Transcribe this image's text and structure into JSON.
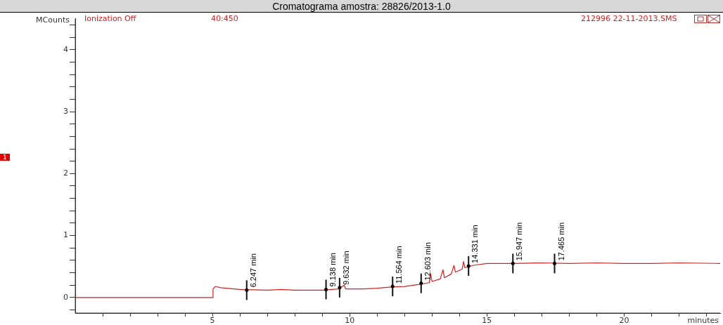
{
  "chart_data": {
    "type": "line",
    "title": "Cromatograma amostra: 28826/2013-1.0",
    "xlabel": "minutes",
    "ylabel": "MCounts",
    "x": [
      0,
      5.0,
      5.02,
      5.1,
      5.3,
      6,
      7,
      7.5,
      8,
      9,
      9.6,
      9.8,
      9.85,
      10.5,
      11,
      11.5,
      12,
      12.5,
      12.9,
      12.95,
      13.0,
      13.3,
      13.4,
      13.45,
      13.7,
      13.8,
      13.85,
      14.1,
      14.15,
      14.2,
      14.5,
      15,
      16,
      17,
      18,
      19,
      20,
      21,
      22,
      23.5
    ],
    "series": [
      {
        "color": "#cc2222",
        "values": [
          0,
          0,
          0.14,
          0.18,
          0.16,
          0.13,
          0.12,
          0.13,
          0.12,
          0.12,
          0.14,
          0.2,
          0.14,
          0.14,
          0.15,
          0.17,
          0.18,
          0.21,
          0.24,
          0.38,
          0.26,
          0.3,
          0.45,
          0.32,
          0.38,
          0.52,
          0.41,
          0.46,
          0.58,
          0.48,
          0.52,
          0.55,
          0.55,
          0.56,
          0.55,
          0.56,
          0.55,
          0.55,
          0.56,
          0.55
        ]
      }
    ],
    "xlim": [
      0,
      23.5
    ],
    "xticks": [
      {
        "value": 1,
        "label": null
      },
      {
        "value": 2,
        "label": null
      },
      {
        "value": 3,
        "label": null
      },
      {
        "value": 4,
        "label": null
      },
      5,
      {
        "value": 6,
        "label": null
      },
      {
        "value": 7,
        "label": null
      },
      {
        "value": 8,
        "label": null
      },
      {
        "value": 9,
        "label": null
      },
      10,
      {
        "value": 11,
        "label": null
      },
      {
        "value": 12,
        "label": null
      },
      {
        "value": 13,
        "label": null
      },
      {
        "value": 14,
        "label": null
      },
      15,
      {
        "value": 16,
        "label": null
      },
      {
        "value": 17,
        "label": null
      },
      {
        "value": 18,
        "label": null
      },
      {
        "value": 19,
        "label": null
      },
      20,
      {
        "value": 21,
        "label": null
      },
      {
        "value": 22,
        "label": null
      },
      {
        "value": 23,
        "label": null
      }
    ],
    "ylim": [
      -0.25,
      4.5
    ],
    "yticks": [
      {
        "value": -0.2,
        "label": null
      },
      0,
      {
        "value": 0.2,
        "label": null
      },
      {
        "value": 0.4,
        "label": null
      },
      {
        "value": 0.6,
        "label": null
      },
      {
        "value": 0.8,
        "label": null
      },
      1,
      {
        "value": 1.2,
        "label": null
      },
      {
        "value": 1.4,
        "label": null
      },
      {
        "value": 1.6,
        "label": null
      },
      {
        "value": 1.8,
        "label": null
      },
      2,
      {
        "value": 2.2,
        "label": null
      },
      {
        "value": 2.4,
        "label": null
      },
      {
        "value": 2.6,
        "label": null
      },
      {
        "value": 2.8,
        "label": null
      },
      3,
      {
        "value": 3.2,
        "label": null
      },
      {
        "value": 3.4,
        "label": null
      },
      {
        "value": 3.6,
        "label": null
      },
      {
        "value": 3.8,
        "label": null
      },
      4,
      {
        "value": 4.2,
        "label": null
      },
      {
        "value": 4.4,
        "label": null
      }
    ],
    "grid": false,
    "legend": false,
    "marker": "none",
    "line_style": "solid",
    "annotations": [
      "Ionization Off",
      "40:450",
      "212996 22-11-2013.SMS",
      "1",
      {
        "text": "6.247 min",
        "x": 6.247,
        "y": 0.12
      },
      {
        "text": "9.138 min",
        "x": 9.138,
        "y": 0.13
      },
      {
        "text": "9.632 min",
        "x": 9.632,
        "y": 0.16
      },
      {
        "text": "11.564 min",
        "x": 11.564,
        "y": 0.18
      },
      {
        "text": "12.603 min",
        "x": 12.603,
        "y": 0.23
      },
      {
        "text": "14.331 min",
        "x": 14.331,
        "y": 0.51
      },
      {
        "text": "15.947 min",
        "x": 15.947,
        "y": 0.55
      },
      {
        "text": "17.465 min",
        "x": 17.465,
        "y": 0.55
      }
    ]
  }
}
